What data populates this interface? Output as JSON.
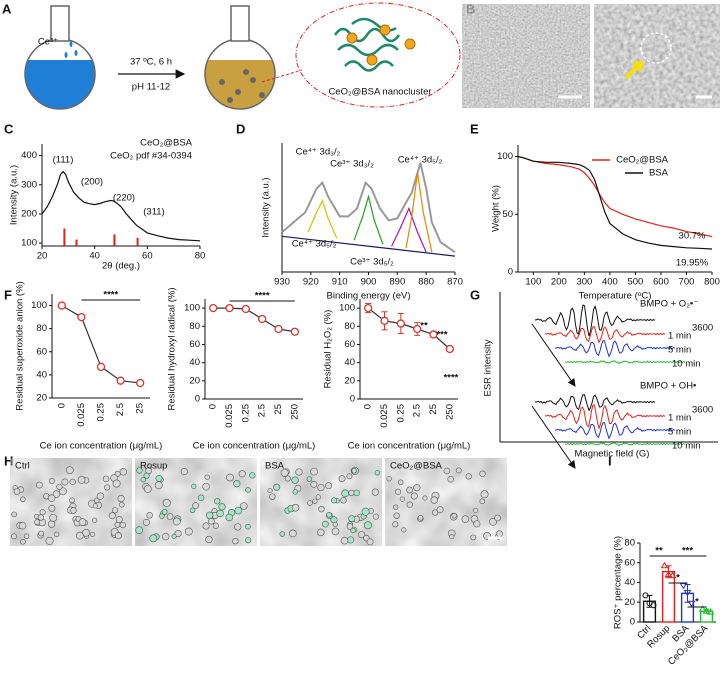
{
  "panel_labels": [
    "A",
    "B",
    "C",
    "D",
    "E",
    "F",
    "G",
    "H",
    "I"
  ],
  "scheme": {
    "ion": "Ce³⁺",
    "condition_1": "37 ºC, 6 h",
    "condition_2": "pH 11-12",
    "product": "CeO₂@BSA nanocluster"
  },
  "esr": {
    "y_label": "ESR intensity",
    "x_label": "Magnetic field (G)",
    "groups": [
      {
        "title": "BMPO + O₂•⁻",
        "scale": "3600",
        "times": [
          "1 min",
          "5 min",
          "10 min"
        ]
      },
      {
        "title": "BMPO + OH•",
        "scale": "3600",
        "times": [
          "1 min",
          "5 min",
          "10 min"
        ]
      }
    ]
  },
  "cell_images": {
    "labels": [
      "Ctrl",
      "Rosup",
      "BSA",
      "CeO₂@BSA"
    ]
  },
  "chart_data": [
    {
      "type": "line",
      "x_label": "2θ (deg.)",
      "y_label": "Intensity (a.u.)",
      "xlim": [
        20,
        80
      ],
      "xticks": [
        20,
        40,
        60,
        80
      ],
      "ylim": [
        90,
        440
      ],
      "yticks": [
        100,
        200,
        300,
        400
      ],
      "legend": "upper right",
      "legend_markers": false,
      "series": [
        {
          "name": "CeO₂@BSA",
          "color": "#111111",
          "x": [
            20,
            22,
            24,
            26,
            27,
            28,
            29,
            30,
            32,
            34,
            36,
            38,
            40,
            42,
            44,
            46,
            47,
            48,
            50,
            52,
            54,
            56,
            58,
            60,
            64,
            68,
            72,
            76,
            80
          ],
          "values": [
            200,
            225,
            260,
            305,
            335,
            345,
            335,
            310,
            275,
            255,
            240,
            235,
            232,
            236,
            242,
            246,
            245,
            240,
            225,
            200,
            180,
            160,
            148,
            135,
            125,
            117,
            112,
            110,
            108
          ]
        },
        {
          "name": "CeO₂ pdf #34-0394",
          "color": "#e0221b",
          "style": "stem",
          "x": [
            28.5,
            33.1,
            47.5,
            56.3
          ],
          "values": [
            150,
            112,
            130,
            118
          ]
        }
      ],
      "annotations": [
        {
          "text": "(111)"
        },
        {
          "text": "(200)"
        },
        {
          "text": "(220)"
        },
        {
          "text": "(311)"
        }
      ]
    },
    {
      "type": "line",
      "x_label": "Binding energy (eV)",
      "y_label": "Intensity (a.u.)",
      "xlim": [
        930,
        870
      ],
      "xticks": [
        930,
        920,
        910,
        900,
        890,
        880,
        870
      ],
      "ylim": [
        30,
        95
      ],
      "series": [
        {
          "color": "#999999",
          "x": [
            930,
            926,
            922,
            918,
            916,
            914,
            910,
            907,
            904,
            901,
            899,
            896,
            893,
            890,
            887,
            885,
            883,
            882,
            880,
            878,
            875,
            872,
            870
          ],
          "values": [
            50,
            55,
            60,
            72,
            75,
            68,
            58,
            58,
            62,
            75,
            72,
            62,
            56,
            57,
            65,
            70,
            80,
            85,
            72,
            55,
            45,
            42,
            40
          ]
        },
        {
          "color": "#1a1a60",
          "x": [
            930,
            870
          ],
          "values": [
            48,
            38
          ]
        },
        {
          "color": "#c8c800",
          "x": [
            921,
            918,
            916,
            914,
            911
          ],
          "values": [
            50,
            60,
            66,
            57,
            47
          ]
        },
        {
          "color": "#1ea51e",
          "x": [
            905,
            902,
            900,
            898,
            895
          ],
          "values": [
            46,
            58,
            68,
            56,
            44
          ]
        },
        {
          "color": "#b012b0",
          "x": [
            892,
            889,
            886,
            883,
            880
          ],
          "values": [
            43,
            52,
            62,
            50,
            40
          ]
        },
        {
          "color": "#e08a00",
          "x": [
            887,
            885,
            883,
            881,
            878
          ],
          "values": [
            42,
            58,
            80,
            60,
            40
          ]
        }
      ],
      "annotations": [
        {
          "text": "Ce⁴⁺ 3d₃/₂",
          "color": "#1f2fd0"
        },
        {
          "text": "Ce³⁺ 3d₃/₂",
          "color": "#1ea51e"
        },
        {
          "text": "Ce⁴⁺ 3d₅/₂",
          "color": "#c8c800"
        },
        {
          "text": "Ce⁴⁺ 3d₅/₂",
          "color": "#a86400"
        },
        {
          "text": "Ce³⁺ 3d₅/₂",
          "color": "#b012b0"
        }
      ]
    },
    {
      "type": "line",
      "x_label": "Temperature (ᵒC)",
      "y_label": "Weight (%)",
      "xlim": [
        40,
        800
      ],
      "xticks": [
        100,
        200,
        300,
        400,
        500,
        600,
        700,
        800
      ],
      "ylim": [
        0,
        110
      ],
      "yticks": [
        0,
        50,
        100
      ],
      "legend": "upper right",
      "series": [
        {
          "name": "CeO₂@BSA",
          "color": "#e0221b",
          "x": [
            40,
            60,
            100,
            150,
            200,
            250,
            280,
            300,
            320,
            340,
            360,
            380,
            400,
            450,
            500,
            550,
            600,
            650,
            700,
            750,
            800
          ],
          "values": [
            100,
            99,
            96,
            94,
            93,
            91,
            89,
            86,
            81,
            75,
            67,
            60,
            55,
            50,
            46,
            43,
            40,
            38,
            35,
            33,
            30.7
          ]
        },
        {
          "name": "BSA",
          "color": "#111111",
          "x": [
            40,
            60,
            100,
            150,
            200,
            250,
            280,
            300,
            320,
            340,
            360,
            380,
            400,
            450,
            500,
            550,
            600,
            650,
            700,
            750,
            800
          ],
          "values": [
            100,
            99,
            96,
            95,
            95,
            94,
            93,
            91,
            88,
            80,
            66,
            52,
            42,
            33,
            28,
            25,
            23,
            22,
            21,
            20.5,
            19.95
          ]
        }
      ],
      "annotations": [
        {
          "text": "30.7%",
          "color": "#e0221b"
        },
        {
          "text": "19.95%",
          "color": "#111111"
        }
      ]
    },
    {
      "type": "line",
      "x_label": "Ce ion concentration (μg/mL)",
      "y_label": "Residual superoxide anion (%)",
      "categories": [
        "0",
        "0.025",
        "0.25",
        "2.5",
        "25"
      ],
      "ylim": [
        20,
        110
      ],
      "yticks": [
        20,
        40,
        60,
        80,
        100
      ],
      "series": [
        {
          "color": "#333333",
          "marker_color": "#d9352b",
          "markers": true,
          "values": [
            100,
            90,
            47,
            35,
            33
          ]
        }
      ],
      "significance": [
        {
          "label": "****",
          "from": "0.025",
          "to": "25"
        }
      ]
    },
    {
      "type": "line",
      "x_label": "Ce ion concentration (μg/mL)",
      "y_label": "Residual hydroxyl radical (%)",
      "categories": [
        "0",
        "0.025",
        "0.25",
        "2.5",
        "25",
        "250"
      ],
      "ylim": [
        0,
        110
      ],
      "yticks": [
        0,
        20,
        40,
        60,
        80,
        100
      ],
      "series": [
        {
          "color": "#333333",
          "marker_color": "#d9352b",
          "markers": true,
          "values": [
            100,
            100,
            99,
            88,
            77,
            74
          ]
        }
      ],
      "significance": [
        {
          "label": "****",
          "from": "0.025",
          "to": "250"
        }
      ]
    },
    {
      "type": "line",
      "x_label": "Ce ion concentration (μg/mL)",
      "y_label": "Residual H₂O₂ (%)",
      "categories": [
        "0",
        "0.025",
        "0.25",
        "2.5",
        "25",
        "250"
      ],
      "ylim": [
        0,
        110
      ],
      "yticks": [
        0,
        20,
        40,
        60,
        80,
        100
      ],
      "series": [
        {
          "color": "#333333",
          "marker_color": "#d9352b",
          "markers": true,
          "values": [
            100,
            86,
            83,
            77,
            71,
            55
          ],
          "errors": [
            5,
            10,
            11,
            7,
            3,
            2
          ]
        }
      ],
      "significance": [
        {
          "label": "**",
          "at": "2.5"
        },
        {
          "label": "***",
          "at": "25"
        },
        {
          "label": "****",
          "at": "250"
        }
      ]
    },
    {
      "type": "bar",
      "y_label": "ROS⁺ percentage (%)",
      "categories": [
        "Ctrl",
        "Rosup",
        "BSA",
        "CeO₂@BSA"
      ],
      "values": [
        21,
        51,
        29,
        11
      ],
      "errors": [
        6,
        6,
        9,
        2
      ],
      "points": [
        [
          27,
          19,
          17
        ],
        [
          57,
          48,
          47
        ],
        [
          37,
          30,
          19
        ],
        [
          13,
          11,
          10
        ]
      ],
      "colors": [
        "#111111",
        "#e0221b",
        "#2233cc",
        "#22bb33"
      ],
      "ylim": [
        0,
        80
      ],
      "yticks": [
        0,
        20,
        40,
        60,
        80
      ],
      "significance": [
        {
          "label": "**",
          "from": "Ctrl",
          "to": "Rosup"
        },
        {
          "label": "***",
          "from": "Rosup",
          "to": "CeO₂@BSA"
        },
        {
          "label": "*",
          "from": "Rosup",
          "to": "BSA"
        },
        {
          "label": "*",
          "from": "BSA",
          "to": "CeO₂@BSA"
        }
      ]
    }
  ]
}
